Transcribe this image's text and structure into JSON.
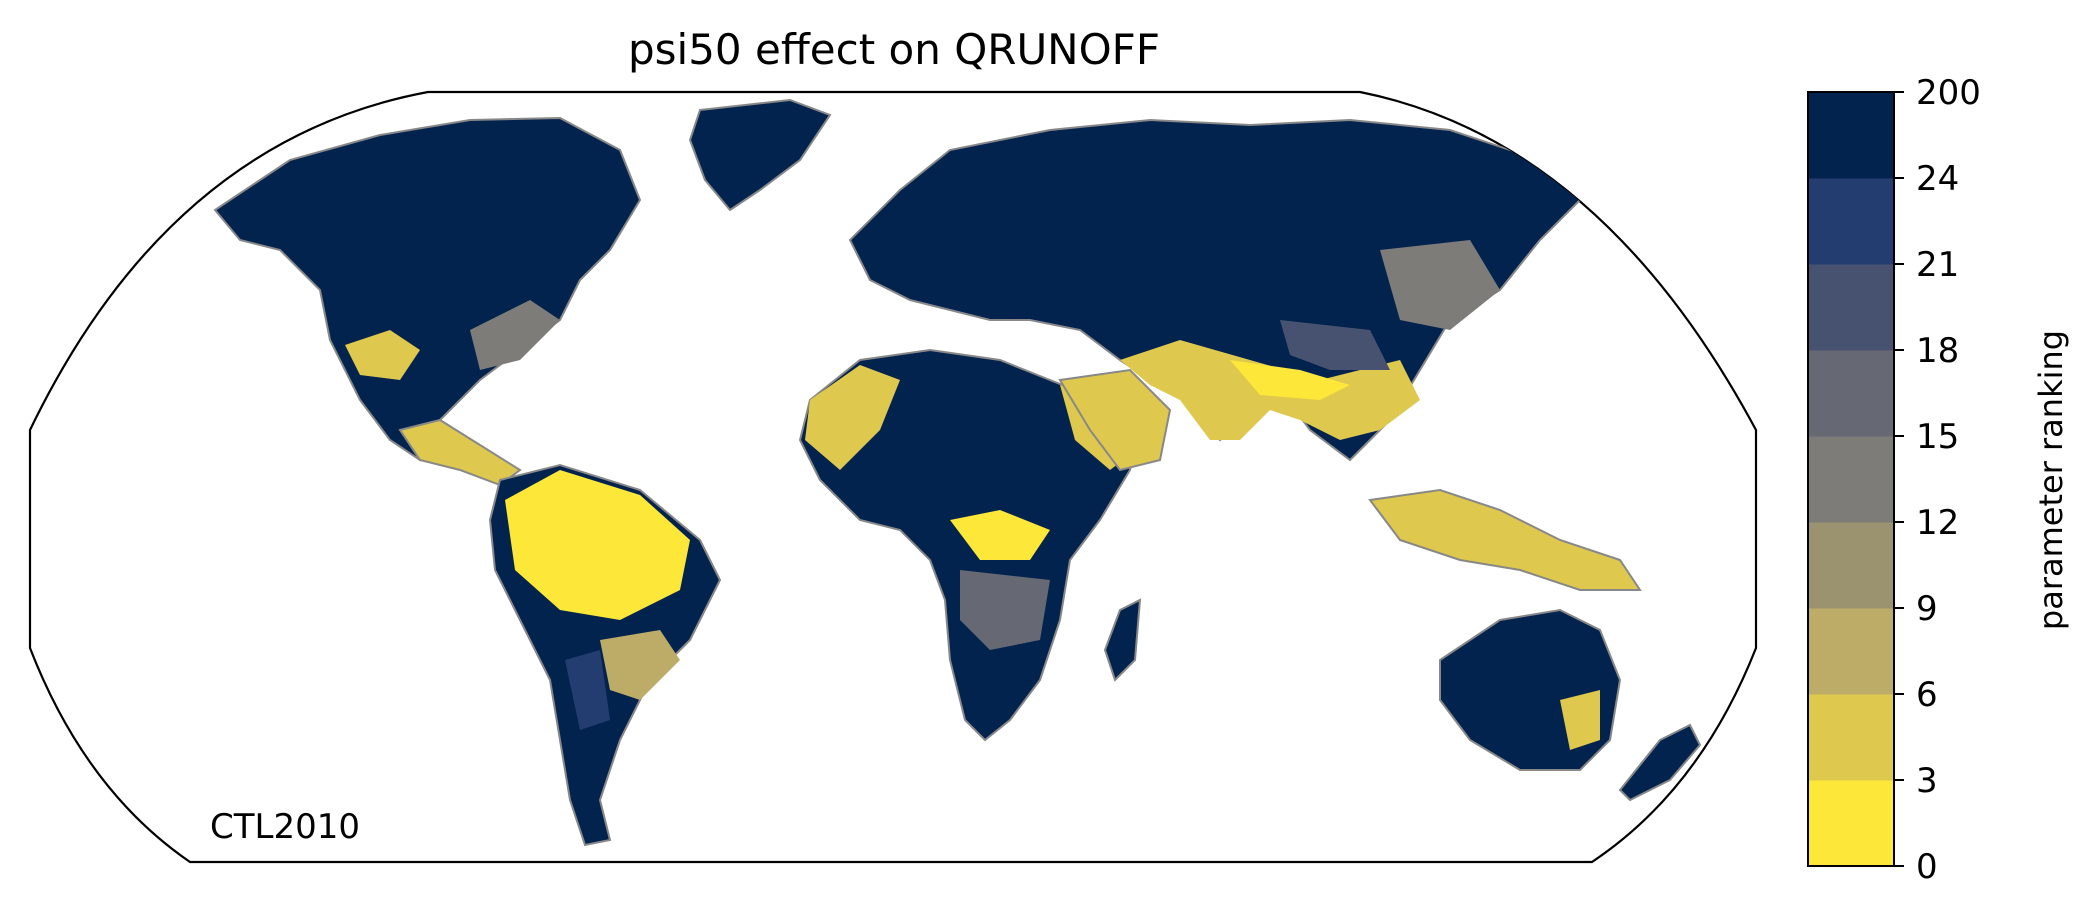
{
  "title": "psi50 effect on QRUNOFF",
  "run_label": "CTL2010",
  "colorbar": {
    "label": "parameter ranking",
    "tick_labels": [
      "0",
      "3",
      "6",
      "9",
      "12",
      "15",
      "18",
      "21",
      "24",
      "200"
    ],
    "colors": [
      "#fde738",
      "#dec84e",
      "#bcac68",
      "#9b9270",
      "#7d7c78",
      "#666973",
      "#475270",
      "#243d71",
      "#03234f"
    ]
  },
  "map": {
    "projection": "Robinson",
    "land_color_low": "#e3cd4a",
    "land_color_high": "#03234f",
    "coastline_color": "#888888"
  }
}
